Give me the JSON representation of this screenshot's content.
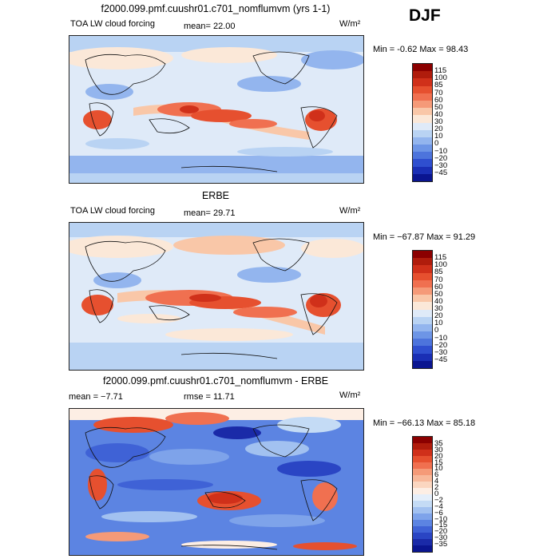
{
  "season": "DJF",
  "panels": [
    {
      "title": "f2000.099.pmf.cuushr01.c701_nomflumvm (yrs 1-1)",
      "left_text": "TOA LW cloud forcing",
      "mid_text": "mean=  22.00",
      "units": "W/m²",
      "minmax": "Min =  -0.62 Max =  98.43",
      "colorbar": {
        "labels": [
          "115",
          "100",
          "85",
          "70",
          "60",
          "50",
          "40",
          "30",
          "20",
          "10",
          "0",
          "−10",
          "−20",
          "−30",
          "−45"
        ],
        "colors": [
          "#8b0000",
          "#b01c0c",
          "#d0301a",
          "#e6502f",
          "#f07050",
          "#f59a78",
          "#f9c7a8",
          "#fbe8d8",
          "#dfeaf8",
          "#b9d3f3",
          "#93b5ee",
          "#6d95e6",
          "#4d74dc",
          "#2f4fcf",
          "#1a2fb5",
          "#0a1590"
        ]
      }
    },
    {
      "title": "ERBE",
      "left_text": "TOA LW cloud forcing",
      "mid_text": "mean=  29.71",
      "units": "W/m²",
      "minmax": "Min = −67.87 Max =  91.29",
      "colorbar": {
        "labels": [
          "115",
          "100",
          "85",
          "70",
          "60",
          "50",
          "40",
          "30",
          "20",
          "10",
          "0",
          "−10",
          "−20",
          "−30",
          "−45"
        ],
        "colors": [
          "#8b0000",
          "#b01c0c",
          "#d0301a",
          "#e6502f",
          "#f07050",
          "#f59a78",
          "#f9c7a8",
          "#fbe8d8",
          "#dfeaf8",
          "#b9d3f3",
          "#93b5ee",
          "#6d95e6",
          "#4d74dc",
          "#2f4fcf",
          "#1a2fb5",
          "#0a1590"
        ]
      }
    },
    {
      "title": "f2000.099.pmf.cuushr01.c701_nomflumvm - ERBE",
      "left_text": "mean =   −7.71",
      "mid_text": "rmse =  11.71",
      "units": "W/m²",
      "minmax": "Min = −66.13 Max =  85.18",
      "colorbar": {
        "labels": [
          "35",
          "30",
          "20",
          "15",
          "10",
          "6",
          "4",
          "2",
          "0",
          "−2",
          "−4",
          "−6",
          "−10",
          "−15",
          "−20",
          "−30",
          "−35"
        ],
        "colors": [
          "#8b0000",
          "#b01c0c",
          "#d0301a",
          "#e6502f",
          "#f07050",
          "#f59a78",
          "#f8b89a",
          "#fbd6c0",
          "#fdeee4",
          "#e4eefa",
          "#c4dbf5",
          "#a2c1f0",
          "#7ea3ea",
          "#5c84e2",
          "#3f62d6",
          "#2a45c4",
          "#1a2aa8",
          "#0a1590"
        ]
      }
    }
  ]
}
